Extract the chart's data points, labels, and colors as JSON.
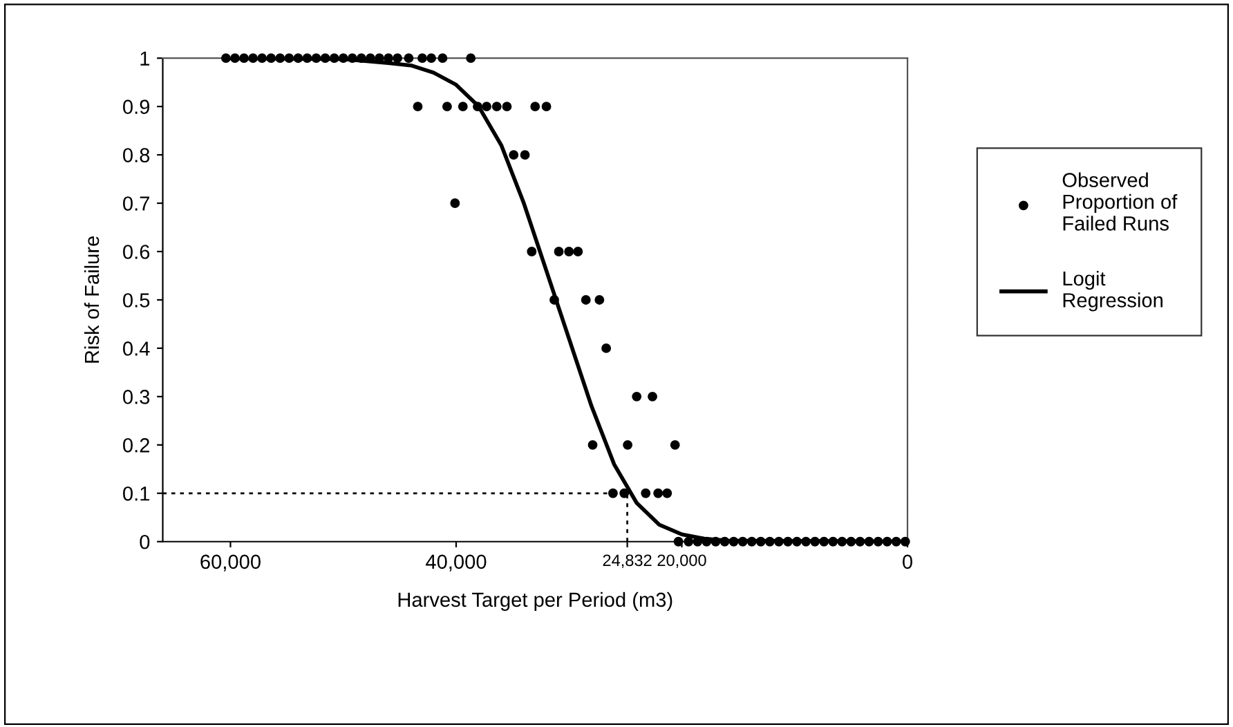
{
  "chart_data": {
    "type": "scatter",
    "xlabel": "Harvest Target per Period (m3)",
    "ylabel": "Risk of Failure",
    "xlim": [
      66000,
      0
    ],
    "xticks": [
      {
        "value": 60000,
        "label": "60,000"
      },
      {
        "value": 40000,
        "label": "40,000"
      },
      {
        "value": 24832,
        "label": "24,832"
      },
      {
        "value": 20000,
        "label": "20,000"
      },
      0
    ],
    "ylim": [
      0,
      1
    ],
    "yticks": [
      0,
      0.1,
      0.2,
      0.3,
      0.4,
      0.5,
      0.6,
      0.7,
      0.8,
      0.9,
      1
    ],
    "grid": false,
    "legend": "right",
    "marker": "circle",
    "series": [
      {
        "name": "Observed\nProportion of\nFailed Runs",
        "type": "scatter",
        "color": "#000000",
        "x": [
          60400,
          59600,
          58800,
          58000,
          57200,
          56400,
          55600,
          54800,
          54000,
          53200,
          52400,
          51600,
          50800,
          50000,
          49200,
          48400,
          47600,
          46800,
          46000,
          45200,
          44200,
          43000,
          42200,
          41200,
          38700,
          43400,
          40800,
          39400,
          38100,
          37300,
          36400,
          35500,
          33000,
          32000,
          34900,
          33900,
          40100,
          33300,
          30900,
          30000,
          29200,
          31300,
          28500,
          27300,
          26700,
          24000,
          22600,
          27900,
          24800,
          20600,
          26100,
          25100,
          23200,
          22100,
          21300,
          20300,
          19400,
          18600,
          17800,
          17000,
          16200,
          15400,
          14600,
          13800,
          13000,
          12200,
          11400,
          10600,
          9800,
          9000,
          8200,
          7400,
          6600,
          5800,
          5000,
          4200,
          3400,
          2600,
          1800,
          1000,
          200
        ],
        "values": [
          1,
          1,
          1,
          1,
          1,
          1,
          1,
          1,
          1,
          1,
          1,
          1,
          1,
          1,
          1,
          1,
          1,
          1,
          1,
          1,
          1,
          1,
          1,
          1,
          1,
          0.9,
          0.9,
          0.9,
          0.9,
          0.9,
          0.9,
          0.9,
          0.9,
          0.9,
          0.8,
          0.8,
          0.7,
          0.6,
          0.6,
          0.6,
          0.6,
          0.5,
          0.5,
          0.5,
          0.4,
          0.3,
          0.3,
          0.2,
          0.2,
          0.2,
          0.1,
          0.1,
          0.1,
          0.1,
          0.1,
          0,
          0,
          0,
          0,
          0,
          0,
          0,
          0,
          0,
          0,
          0,
          0,
          0,
          0,
          0,
          0,
          0,
          0,
          0,
          0,
          0,
          0,
          0,
          0,
          0,
          0
        ]
      },
      {
        "name": "Logit\nRegression",
        "type": "line",
        "marker": "none",
        "line_style": "solid",
        "color": "#000000",
        "x": [
          60000,
          50000,
          46000,
          44000,
          42000,
          40000,
          38000,
          36000,
          34000,
          32000,
          30000,
          28000,
          26000,
          24000,
          22000,
          20000,
          18000,
          16000,
          0
        ],
        "values": [
          1,
          0.998,
          0.99,
          0.985,
          0.97,
          0.945,
          0.9,
          0.82,
          0.7,
          0.56,
          0.42,
          0.28,
          0.16,
          0.08,
          0.035,
          0.015,
          0.006,
          0.002,
          0
        ]
      }
    ],
    "ref_lines": [
      {
        "axis": "y",
        "value": 0.1,
        "line_style": "dotted",
        "color": "#000000"
      },
      {
        "axis": "x",
        "value": 24832,
        "line_style": "dotted",
        "color": "#000000"
      }
    ]
  }
}
